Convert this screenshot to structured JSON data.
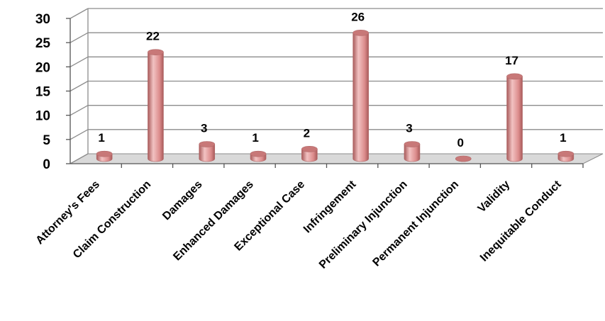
{
  "chart_data": {
    "type": "bar",
    "style": "3d-cylinder",
    "categories": [
      "Attorney's Fees",
      "Claim Construction",
      "Damages",
      "Enhanced Damages",
      "Exceptional Case",
      "Infringement",
      "Preliminary Injunction",
      "Permanent Injunction",
      "Validity",
      "Inequitable Conduct"
    ],
    "values": [
      1,
      22,
      3,
      1,
      2,
      26,
      3,
      0,
      17,
      1
    ],
    "data_labels": [
      "1",
      "22",
      "3",
      "1",
      "2",
      "26",
      "3",
      "0",
      "17",
      "1"
    ],
    "ylim": [
      0,
      30
    ],
    "y_ticks": [
      "0",
      "5",
      "10",
      "15",
      "20",
      "25",
      "30"
    ],
    "grid": true,
    "legend": "none",
    "colors": {
      "bar_light": "#f2c2c2",
      "bar_mid": "#dc8c8c",
      "bar_dark": "#a85a5a",
      "bar_top": "#c87878",
      "grid": "#8c8c8c",
      "floor": "#d9d9d9"
    }
  }
}
